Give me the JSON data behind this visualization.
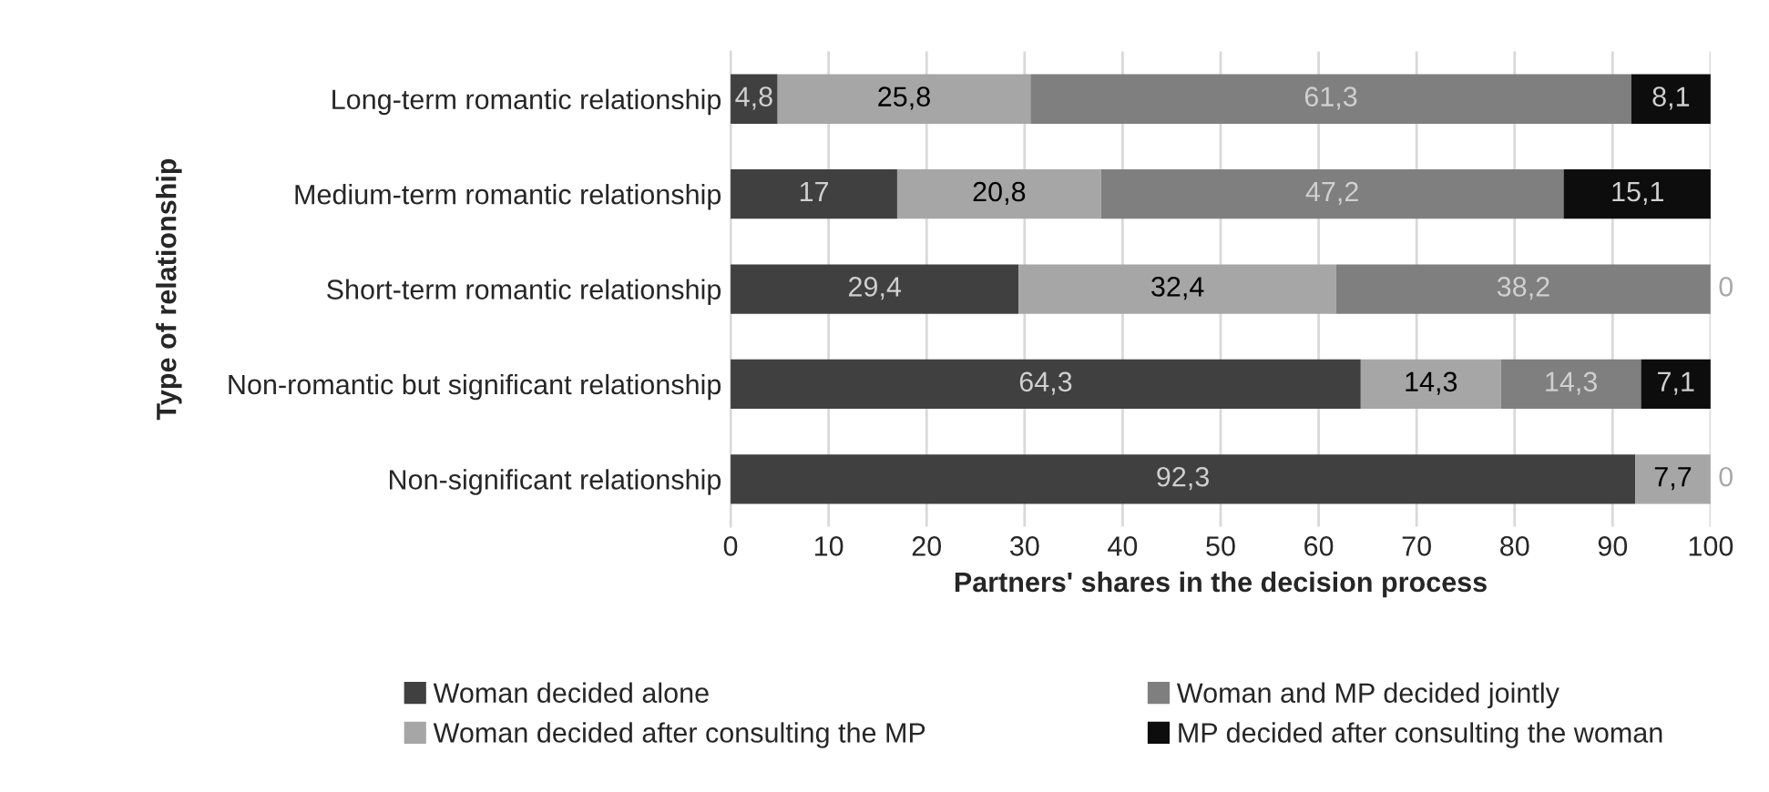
{
  "chart_data": {
    "type": "bar",
    "orientation": "horizontal",
    "stacked": true,
    "categories": [
      "Long-term romantic relationship",
      "Medium-term romantic relationship",
      "Short-term romantic relationship",
      "Non-romantic but significant relationship",
      "Non-significant relationship"
    ],
    "series": [
      {
        "name": "Woman decided alone",
        "color": "#404040",
        "values": [
          4.8,
          17,
          29.4,
          64.3,
          92.3
        ],
        "value_labels": [
          "4,8",
          "17",
          "29,4",
          "64,3",
          "92,3"
        ]
      },
      {
        "name": "Woman decided after consulting the MP",
        "color": "#a6a6a6",
        "values": [
          25.8,
          20.8,
          32.4,
          14.3,
          7.7
        ],
        "value_labels": [
          "25,8",
          "20,8",
          "32,4",
          "14,3",
          "7,7"
        ]
      },
      {
        "name": "Woman and MP decided jointly",
        "color": "#7f7f7f",
        "values": [
          61.3,
          47.2,
          38.2,
          14.3,
          0
        ],
        "value_labels": [
          "61,3",
          "47,2",
          "38,2",
          "14,3",
          "0"
        ]
      },
      {
        "name": "MP decided after consulting the woman",
        "color": "#0d0d0d",
        "values": [
          8.1,
          15.1,
          0,
          7.1,
          0
        ],
        "value_labels": [
          "8,1",
          "15,1",
          "0",
          "7,1",
          null
        ]
      }
    ],
    "xlim": [
      0,
      100
    ],
    "xticks": [
      0,
      10,
      20,
      30,
      40,
      50,
      60,
      70,
      80,
      90,
      100
    ],
    "xlabel": "Partners' shares in the decision process",
    "ylabel": "Type of relationship",
    "grid": "x",
    "legend": "bottom"
  }
}
